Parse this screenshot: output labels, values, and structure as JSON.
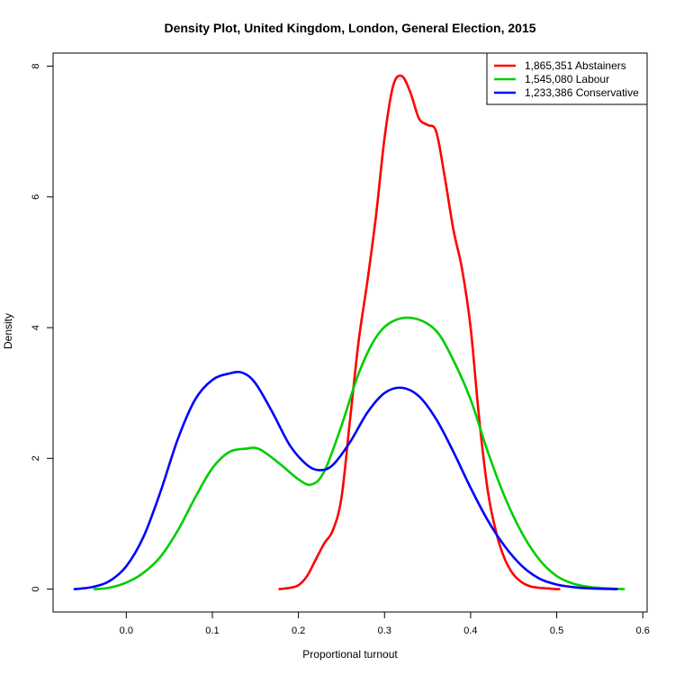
{
  "chart_data": {
    "type": "line",
    "title": "Density Plot, United Kingdom, London, General Election, 2015",
    "xlabel": "Proportional turnout",
    "ylabel": "Density",
    "xlim": [
      -0.085,
      0.605
    ],
    "ylim": [
      -0.35,
      8.2
    ],
    "xticks": [
      "0.0",
      "0.1",
      "0.2",
      "0.3",
      "0.4",
      "0.5",
      "0.6"
    ],
    "yticks": [
      "0",
      "2",
      "4",
      "6",
      "8"
    ],
    "grid": false,
    "legend_position": "top-right",
    "series": [
      {
        "name": "1,865,351 Abstainers",
        "color": "#ff0000",
        "x": [
          0.178,
          0.19,
          0.2,
          0.21,
          0.22,
          0.23,
          0.24,
          0.25,
          0.26,
          0.27,
          0.28,
          0.29,
          0.3,
          0.31,
          0.32,
          0.33,
          0.34,
          0.35,
          0.36,
          0.37,
          0.38,
          0.39,
          0.4,
          0.41,
          0.42,
          0.43,
          0.44,
          0.45,
          0.46,
          0.47,
          0.48,
          0.49,
          0.5,
          0.503
        ],
        "y": [
          0.0,
          0.02,
          0.06,
          0.2,
          0.45,
          0.7,
          0.9,
          1.4,
          2.6,
          3.8,
          4.7,
          5.7,
          6.9,
          7.7,
          7.85,
          7.6,
          7.2,
          7.1,
          7.0,
          6.3,
          5.5,
          4.9,
          4.0,
          2.6,
          1.5,
          0.85,
          0.45,
          0.22,
          0.1,
          0.04,
          0.02,
          0.01,
          0.0,
          0.0
        ]
      },
      {
        "name": "1,545,080 Labour",
        "color": "#00cd00",
        "x": [
          -0.037,
          -0.02,
          0.0,
          0.02,
          0.04,
          0.06,
          0.08,
          0.1,
          0.12,
          0.14,
          0.15,
          0.16,
          0.18,
          0.2,
          0.215,
          0.23,
          0.25,
          0.27,
          0.29,
          0.31,
          0.335,
          0.36,
          0.38,
          0.4,
          0.42,
          0.44,
          0.46,
          0.48,
          0.5,
          0.52,
          0.54,
          0.56,
          0.578
        ],
        "y": [
          0.0,
          0.02,
          0.1,
          0.25,
          0.5,
          0.9,
          1.4,
          1.85,
          2.1,
          2.15,
          2.16,
          2.1,
          1.9,
          1.68,
          1.6,
          1.8,
          2.5,
          3.3,
          3.85,
          4.1,
          4.14,
          3.95,
          3.5,
          2.9,
          2.1,
          1.4,
          0.85,
          0.45,
          0.2,
          0.08,
          0.03,
          0.01,
          0.0
        ]
      },
      {
        "name": "1,233,386 Conservative",
        "color": "#0000ff",
        "x": [
          -0.06,
          -0.04,
          -0.02,
          0.0,
          0.02,
          0.04,
          0.06,
          0.08,
          0.1,
          0.12,
          0.135,
          0.15,
          0.17,
          0.19,
          0.21,
          0.225,
          0.24,
          0.26,
          0.28,
          0.3,
          0.32,
          0.34,
          0.36,
          0.38,
          0.4,
          0.42,
          0.44,
          0.46,
          0.48,
          0.5,
          0.52,
          0.54,
          0.57
        ],
        "y": [
          0.0,
          0.03,
          0.12,
          0.35,
          0.8,
          1.5,
          2.3,
          2.9,
          3.2,
          3.3,
          3.31,
          3.15,
          2.7,
          2.2,
          1.9,
          1.82,
          1.9,
          2.25,
          2.7,
          3.0,
          3.08,
          2.95,
          2.6,
          2.1,
          1.55,
          1.05,
          0.65,
          0.35,
          0.16,
          0.07,
          0.03,
          0.01,
          0.0
        ]
      }
    ]
  }
}
